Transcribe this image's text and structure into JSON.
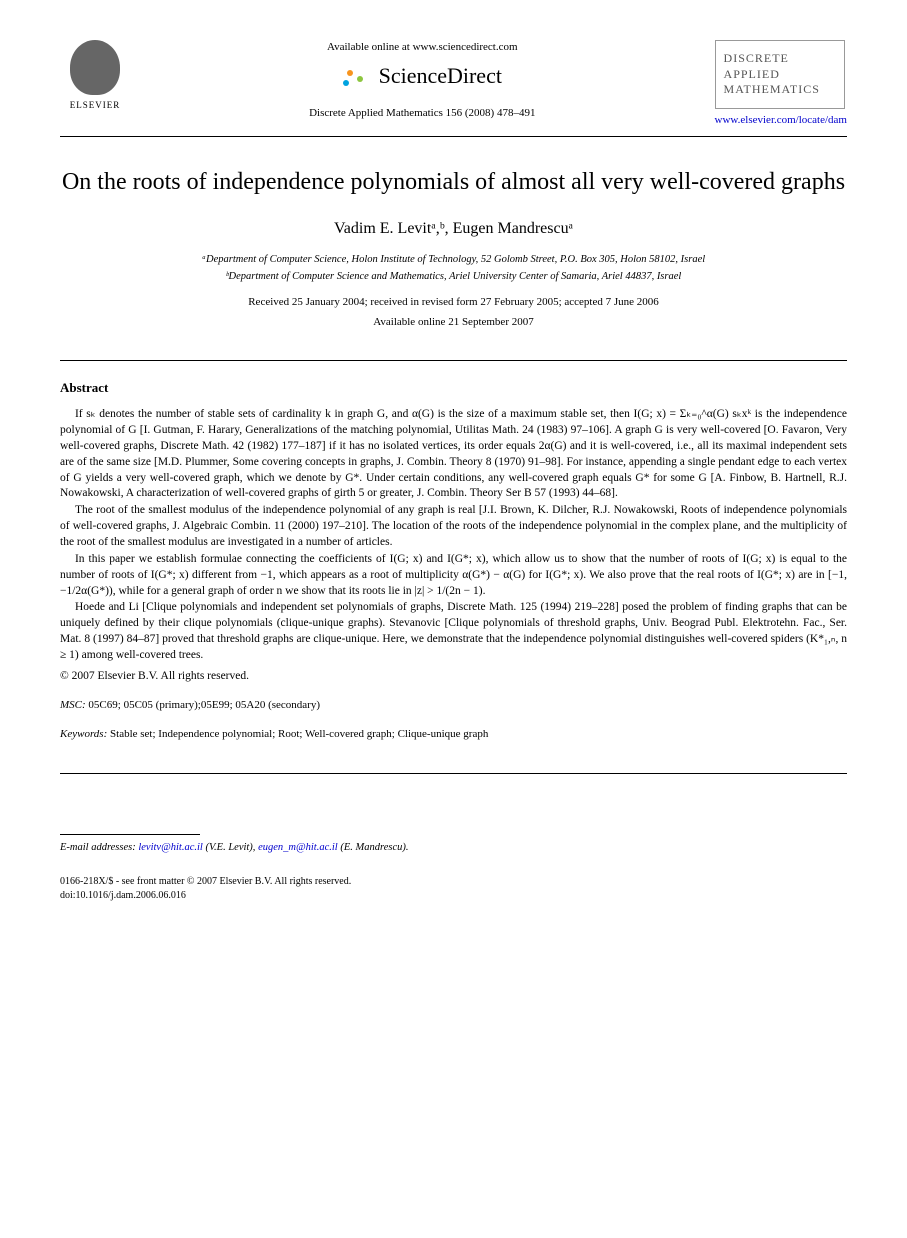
{
  "header": {
    "publisher": "ELSEVIER",
    "available_text": "Available online at www.sciencedirect.com",
    "sd_brand": "ScienceDirect",
    "citation": "Discrete Applied Mathematics 156 (2008) 478–491",
    "journal_name_l1": "DISCRETE",
    "journal_name_l2": "APPLIED",
    "journal_name_l3": "MATHEMATICS",
    "journal_url": "www.elsevier.com/locate/dam"
  },
  "article": {
    "title": "On the roots of independence polynomials of almost all very well-covered graphs",
    "authors": "Vadim E. Levitᵃ,ᵇ, Eugen Mandrescuᵃ",
    "affil_a": "ᵃDepartment of Computer Science, Holon Institute of Technology, 52 Golomb Street, P.O. Box 305, Holon 58102, Israel",
    "affil_b": "ᵇDepartment of Computer Science and Mathematics, Ariel University Center of Samaria, Ariel 44837, Israel",
    "dates_l1": "Received 25 January 2004; received in revised form 27 February 2005; accepted 7 June 2006",
    "dates_l2": "Available online 21 September 2007"
  },
  "abstract": {
    "heading": "Abstract",
    "p1": "If sₖ denotes the number of stable sets of cardinality k in graph G, and α(G) is the size of a maximum stable set, then I(G; x) = Σₖ₌₀^α(G) sₖxᵏ is the independence polynomial of G [I. Gutman, F. Harary, Generalizations of the matching polynomial, Utilitas Math. 24 (1983) 97–106]. A graph G is very well-covered [O. Favaron, Very well-covered graphs, Discrete Math. 42 (1982) 177–187] if it has no isolated vertices, its order equals 2α(G) and it is well-covered, i.e., all its maximal independent sets are of the same size [M.D. Plummer, Some covering concepts in graphs, J. Combin. Theory 8 (1970) 91–98]. For instance, appending a single pendant edge to each vertex of G yields a very well-covered graph, which we denote by G*. Under certain conditions, any well-covered graph equals G* for some G [A. Finbow, B. Hartnell, R.J. Nowakowski, A characterization of well-covered graphs of girth 5 or greater, J. Combin. Theory Ser B 57 (1993) 44–68].",
    "p2": "The root of the smallest modulus of the independence polynomial of any graph is real [J.I. Brown, K. Dilcher, R.J. Nowakowski, Roots of independence polynomials of well-covered graphs, J. Algebraic Combin. 11 (2000) 197–210]. The location of the roots of the independence polynomial in the complex plane, and the multiplicity of the root of the smallest modulus are investigated in a number of articles.",
    "p3": "In this paper we establish formulae connecting the coefficients of I(G; x) and I(G*; x), which allow us to show that the number of roots of I(G; x) is equal to the number of roots of I(G*; x) different from −1, which appears as a root of multiplicity α(G*) − α(G) for I(G*; x). We also prove that the real roots of I(G*; x) are in [−1, −1/2α(G*)), while for a general graph of order n we show that its roots lie in |z| > 1/(2n − 1).",
    "p4": "Hoede and Li [Clique polynomials and independent set polynomials of graphs, Discrete Math. 125 (1994) 219–228] posed the problem of finding graphs that can be uniquely defined by their clique polynomials (clique-unique graphs). Stevanovic [Clique polynomials of threshold graphs, Univ. Beograd Publ. Elektrotehn. Fac., Ser. Mat. 8 (1997) 84–87] proved that threshold graphs are clique-unique. Here, we demonstrate that the independence polynomial distinguishes well-covered spiders (K*₁,ₙ, n ≥ 1) among well-covered trees.",
    "copyright": "© 2007 Elsevier B.V. All rights reserved."
  },
  "meta": {
    "msc_label": "MSC:",
    "msc_text": " 05C69; 05C05 (primary);05E99; 05A20 (secondary)",
    "kw_label": "Keywords:",
    "kw_text": " Stable set; Independence polynomial; Root; Well-covered graph; Clique-unique graph"
  },
  "footer": {
    "email_label": "E-mail addresses:",
    "email1": "levitv@hit.ac.il",
    "email1_who": " (V.E. Levit), ",
    "email2": "eugen_m@hit.ac.il",
    "email2_who": " (E. Mandrescu).",
    "issn": "0166-218X/$ - see front matter © 2007 Elsevier B.V. All rights reserved.",
    "doi": "doi:10.1016/j.dam.2006.06.016"
  },
  "colors": {
    "text": "#000000",
    "link": "#0000cc",
    "bg": "#ffffff",
    "grey": "#666666"
  }
}
